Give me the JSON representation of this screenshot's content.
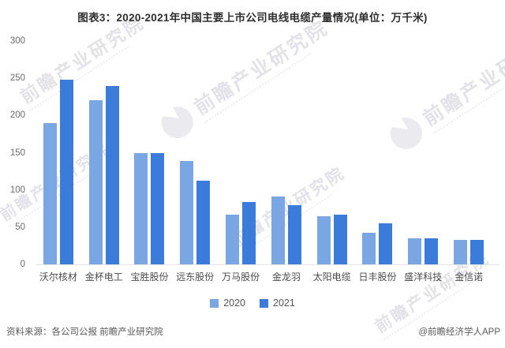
{
  "title": "图表3：2020-2021年中国主要上市公司电线电缆产量情况(单位：万千米)",
  "chart_data": {
    "type": "bar",
    "title": "图表3：2020-2021年中国主要上市公司电线电缆产量情况(单位：万千米)",
    "unit": "万千米",
    "categories": [
      "沃尔核材",
      "金杯电工",
      "宝胜股份",
      "远东股份",
      "万马股份",
      "金龙羽",
      "太阳电缆",
      "日丰股份",
      "盛洋科技",
      "金信诺"
    ],
    "series": [
      {
        "name": "2020",
        "color": "#7AA6E3",
        "values": [
          190,
          220,
          150,
          139,
          67,
          91,
          65,
          42,
          35,
          33
        ]
      },
      {
        "name": "2021",
        "color": "#3B7BDA",
        "values": [
          248,
          240,
          149,
          112,
          84,
          80,
          67,
          55,
          35,
          33
        ]
      }
    ],
    "ylim": [
      0,
      300
    ],
    "yticks": [
      0,
      50,
      100,
      150,
      200,
      250,
      300
    ],
    "grid": false,
    "legend_position": "bottom-center"
  },
  "watermark": {
    "text": "前瞻产业研究院"
  },
  "footer": {
    "source": "资料来源：各公司公报 前瞻产业研究院",
    "credit": "@前瞻经济学人APP"
  }
}
